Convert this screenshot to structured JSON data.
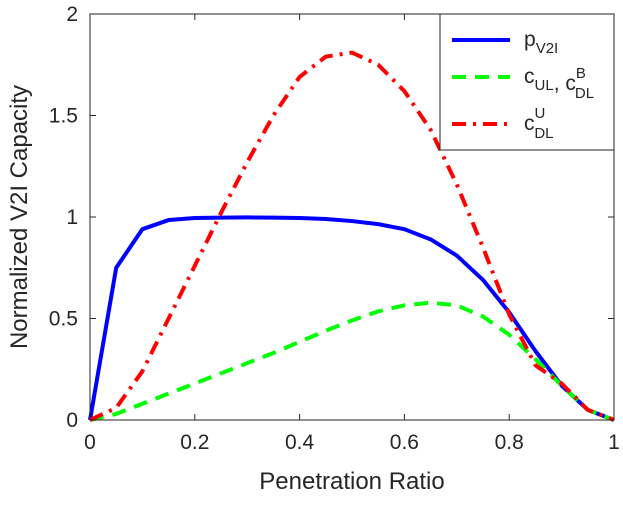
{
  "chart_data": {
    "type": "line",
    "xlabel": "Penetration Ratio",
    "ylabel": "Normalized V2I Capacity",
    "xlim": [
      0,
      1
    ],
    "ylim": [
      0,
      2
    ],
    "x_ticks": [
      "0",
      "0.2",
      "0.4",
      "0.6",
      "0.8",
      "1"
    ],
    "y_ticks": [
      "0",
      "0.5",
      "1",
      "1.5",
      "2"
    ],
    "x_tick_values": [
      0,
      0.2,
      0.4,
      0.6,
      0.8,
      1
    ],
    "y_tick_values": [
      0,
      0.5,
      1,
      1.5,
      2
    ],
    "grid": false,
    "legend_position": "top-right",
    "x": [
      0,
      0.05,
      0.1,
      0.15,
      0.2,
      0.25,
      0.3,
      0.35,
      0.4,
      0.45,
      0.5,
      0.55,
      0.6,
      0.65,
      0.7,
      0.75,
      0.8,
      0.85,
      0.9,
      0.95,
      1
    ],
    "series": [
      {
        "name": "p_V2I",
        "legend": {
          "base": "p",
          "sub": "V2I",
          "sup": "",
          "base2": "",
          "sub2": "",
          "sup2": ""
        },
        "color": "#0000ff",
        "style": "solid",
        "values": [
          0,
          0.75,
          0.94,
          0.985,
          0.995,
          0.997,
          0.998,
          0.997,
          0.995,
          0.99,
          0.98,
          0.965,
          0.94,
          0.89,
          0.81,
          0.69,
          0.53,
          0.34,
          0.17,
          0.05,
          0
        ]
      },
      {
        "name": "c_UL, c_DL^B",
        "legend": {
          "base": "c",
          "sub": "UL",
          "sup": "",
          "base2": ", c",
          "sub2": "DL",
          "sup2": "B"
        },
        "color": "#00ff00",
        "style": "dashed",
        "values": [
          0,
          0.03,
          0.08,
          0.13,
          0.18,
          0.23,
          0.28,
          0.33,
          0.385,
          0.44,
          0.49,
          0.535,
          0.565,
          0.578,
          0.565,
          0.51,
          0.42,
          0.3,
          0.17,
          0.05,
          0
        ]
      },
      {
        "name": "c_DL^U",
        "legend": {
          "base": "c",
          "sub": "DL",
          "sup": "U",
          "base2": "",
          "sub2": "",
          "sup2": ""
        },
        "color": "#ff0000",
        "style": "dashdot",
        "values": [
          0,
          0.06,
          0.24,
          0.5,
          0.76,
          1.02,
          1.27,
          1.5,
          1.69,
          1.79,
          1.81,
          1.75,
          1.62,
          1.43,
          1.16,
          0.85,
          0.52,
          0.27,
          0.18,
          0.05,
          0
        ]
      }
    ]
  }
}
